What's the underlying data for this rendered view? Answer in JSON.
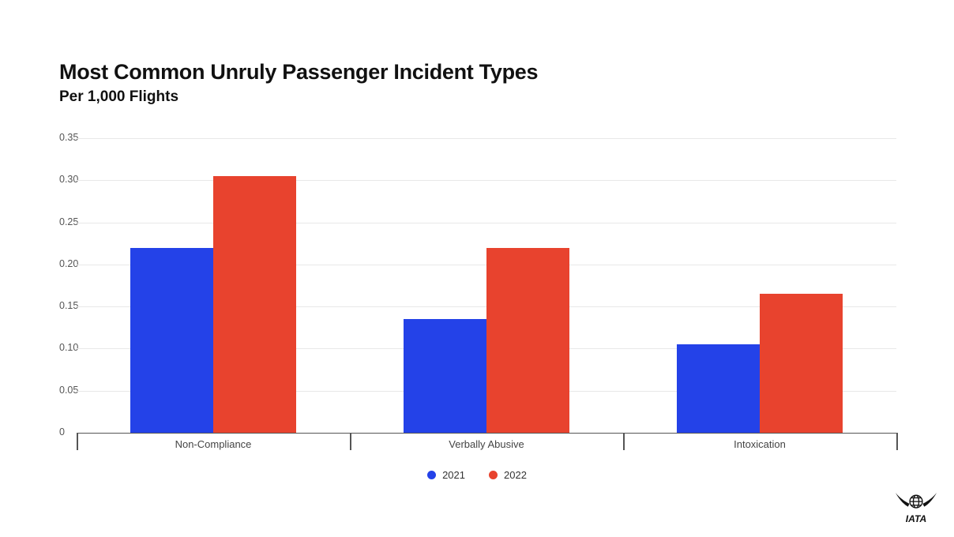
{
  "chart_data": {
    "type": "bar",
    "title": "Most Common Unruly Passenger Incident Types",
    "subtitle": "Per 1,000 Flights",
    "categories": [
      "Non-Compliance",
      "Verbally Abusive",
      "Intoxication"
    ],
    "series": [
      {
        "name": "2021",
        "color": "#2442e8",
        "values": [
          0.22,
          0.135,
          0.105
        ]
      },
      {
        "name": "2022",
        "color": "#e8432e",
        "values": [
          0.305,
          0.22,
          0.165
        ]
      }
    ],
    "xlabel": "",
    "ylabel": "",
    "ylim": [
      0,
      0.35
    ],
    "yticks": [
      "0.35",
      "0.30",
      "0.25",
      "0.20",
      "0.15",
      "0.10",
      "0.05",
      "0"
    ],
    "grid": true,
    "legend_position": "bottom"
  },
  "footer": {
    "logo_text": "IATA"
  }
}
